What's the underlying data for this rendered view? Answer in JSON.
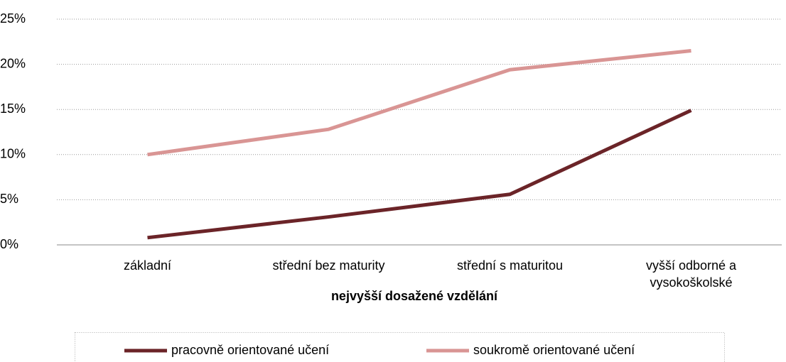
{
  "chart_data": {
    "type": "line",
    "x_label": "nejvyšší dosažené vzdělání",
    "categories": [
      "základní",
      "střední bez maturity",
      "střední s maturitou",
      "vyšší odborné a vysokoškolské"
    ],
    "series": [
      {
        "name": "pracovně orientované učení",
        "color": "#6b2428",
        "values": [
          0.8,
          3.1,
          5.6,
          14.9
        ]
      },
      {
        "name": "soukromě orientované učení",
        "color": "#d99594",
        "values": [
          10.0,
          12.8,
          19.4,
          21.5
        ]
      }
    ],
    "ylim": [
      0,
      25
    ],
    "yticks": [
      {
        "value": 0,
        "label": "0%"
      },
      {
        "value": 5,
        "label": "5%"
      },
      {
        "value": 10,
        "label": "10%"
      },
      {
        "value": 15,
        "label": "15%"
      },
      {
        "value": 20,
        "label": "20%"
      },
      {
        "value": 25,
        "label": "25%"
      }
    ],
    "grid": true,
    "legend": "bottom"
  }
}
